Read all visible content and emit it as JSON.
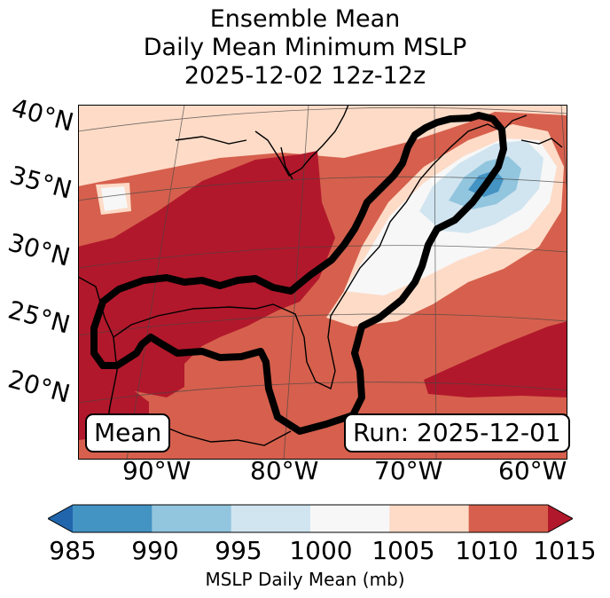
{
  "title": {
    "line1": "Ensemble Mean",
    "line2": "Daily Mean Minimum MSLP",
    "line3": "2025-12-02 12z-12z"
  },
  "map": {
    "lat_labels": [
      "40°N",
      "35°N",
      "30°N",
      "25°N",
      "20°N"
    ],
    "lon_labels": [
      "90°W",
      "80°W",
      "70°W",
      "60°W"
    ],
    "mean_box": "Mean",
    "run_box": "Run: 2025-12-01"
  },
  "colorbar": {
    "ticks": [
      "985",
      "990",
      "995",
      "1000",
      "1005",
      "1010",
      "1015"
    ],
    "label": "MSLP Daily Mean (mb)",
    "colors": [
      "#2166ac",
      "#4393c3",
      "#92c5de",
      "#d1e5f0",
      "#f7f7f7",
      "#fddbc7",
      "#d6604d",
      "#b2182b"
    ]
  }
}
